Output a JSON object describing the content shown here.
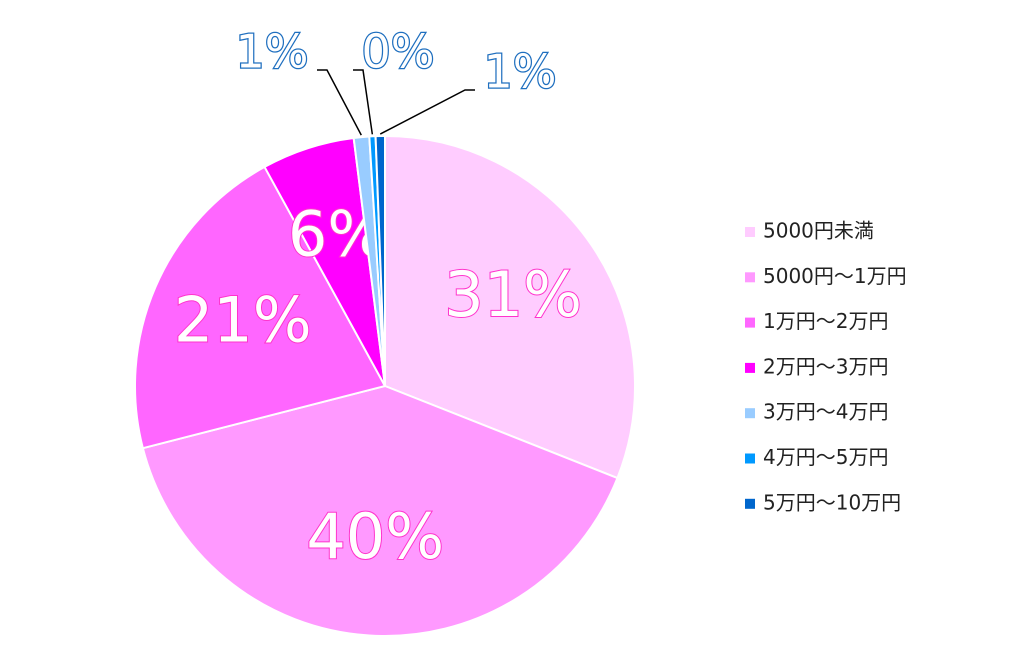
{
  "chart_data": {
    "type": "pie",
    "categories": [
      "5000円未満",
      "5000円～1万円",
      "1万円～2万円",
      "2万円～3万円",
      "3万円～4万円",
      "4万円～5万円",
      "5万円～10万円"
    ],
    "values": [
      31,
      40,
      21,
      6,
      1,
      0.4,
      0.6
    ],
    "value_labels": [
      "31%",
      "40%",
      "21%",
      "6%",
      "1%",
      "0%",
      "1%"
    ],
    "colors": [
      "#ffccff",
      "#ff99ff",
      "#ff66ff",
      "#ff00ff",
      "#99ccff",
      "#0099ff",
      "#0066cc"
    ],
    "legend": "right"
  }
}
